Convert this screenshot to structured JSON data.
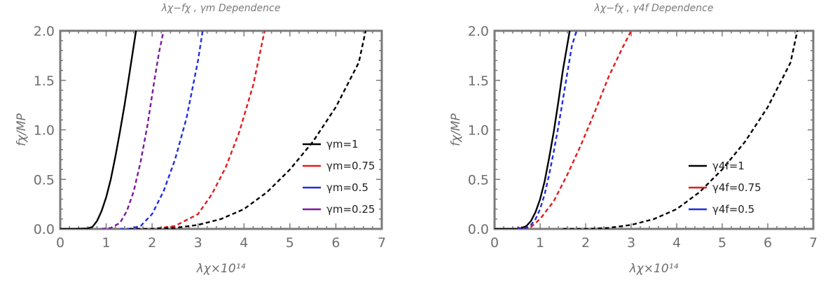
{
  "chart_data": [
    {
      "type": "line",
      "title": "λχ−fχ , γm Dependence",
      "xlabel": "λχ×10¹⁴",
      "ylabel": "fχ/MP",
      "xlim": [
        0,
        7
      ],
      "ylim": [
        0,
        2.0
      ],
      "x_ticks": [
        "0",
        "1",
        "2",
        "3",
        "4",
        "5",
        "6",
        "7"
      ],
      "y_ticks": [
        "0.0",
        "0.5",
        "1.0",
        "1.5",
        "2.0"
      ],
      "legend_position": "right-middle",
      "series": [
        {
          "name": "γm=1",
          "color": "#000000",
          "style": "solid",
          "x": [
            0.0,
            0.3,
            0.6,
            0.7,
            0.8,
            0.9,
            1.0,
            1.1,
            1.2,
            1.3,
            1.4,
            1.5,
            1.6,
            1.65
          ],
          "y": [
            0.0,
            0.0,
            0.005,
            0.02,
            0.08,
            0.18,
            0.32,
            0.5,
            0.73,
            0.98,
            1.25,
            1.55,
            1.85,
            2.0
          ]
        },
        {
          "name": "γm=0.75",
          "color": "#e41a1c",
          "style": "dashed",
          "x": [
            1.5,
            2.0,
            2.5,
            3.0,
            3.3,
            3.6,
            3.9,
            4.2,
            4.45
          ],
          "y": [
            0.0,
            0.0,
            0.03,
            0.15,
            0.35,
            0.62,
            0.98,
            1.45,
            2.0
          ]
        },
        {
          "name": "γm=0.5",
          "color": "#1f2fe0",
          "style": "dashed",
          "x": [
            1.3,
            1.5,
            1.75,
            2.0,
            2.25,
            2.5,
            2.75,
            3.0,
            3.1
          ],
          "y": [
            0.0,
            0.0,
            0.03,
            0.15,
            0.38,
            0.7,
            1.12,
            1.7,
            2.0
          ]
        },
        {
          "name": "γm=0.25",
          "color": "#7a1b9a",
          "style": "dashed",
          "x": [
            0.9,
            1.1,
            1.3,
            1.45,
            1.6,
            1.75,
            1.9,
            2.05,
            2.15,
            2.25
          ],
          "y": [
            0.0,
            0.01,
            0.06,
            0.18,
            0.38,
            0.68,
            1.05,
            1.5,
            1.78,
            2.0
          ]
        },
        {
          "name": "",
          "color": "#000000",
          "style": "dashed",
          "x": [
            1.5,
            2.0,
            2.5,
            3.0,
            3.5,
            4.0,
            4.5,
            5.0,
            5.5,
            6.0,
            6.5,
            6.65
          ],
          "y": [
            0.0,
            0.0,
            0.01,
            0.04,
            0.1,
            0.2,
            0.37,
            0.6,
            0.88,
            1.23,
            1.68,
            2.0
          ]
        }
      ]
    },
    {
      "type": "line",
      "title": "λχ−fχ , γ4f Dependence",
      "xlabel": "λχ×10¹⁴",
      "ylabel": "fχ/MP",
      "xlim": [
        0,
        7
      ],
      "ylim": [
        0,
        2.0
      ],
      "x_ticks": [
        "0",
        "1",
        "2",
        "3",
        "4",
        "5",
        "6",
        "7"
      ],
      "y_ticks": [
        "0.0",
        "0.5",
        "1.0",
        "1.5",
        "2.0"
      ],
      "legend_position": "right-lower",
      "series": [
        {
          "name": "γ4f=1",
          "color": "#000000",
          "style": "solid",
          "x": [
            0.0,
            0.3,
            0.5,
            0.6,
            0.7,
            0.8,
            0.9,
            1.0,
            1.1,
            1.2,
            1.3,
            1.4,
            1.5,
            1.65
          ],
          "y": [
            0.0,
            0.0,
            0.0,
            0.01,
            0.03,
            0.08,
            0.17,
            0.3,
            0.48,
            0.72,
            0.98,
            1.28,
            1.6,
            2.0
          ]
        },
        {
          "name": "γ4f=0.75",
          "color": "#e41a1c",
          "style": "dashed",
          "x": [
            0.5,
            0.6,
            0.8,
            1.0,
            1.3,
            1.6,
            1.9,
            2.2,
            2.5,
            2.8,
            3.0
          ],
          "y": [
            0.02,
            0.0,
            0.02,
            0.1,
            0.28,
            0.55,
            0.85,
            1.18,
            1.53,
            1.82,
            2.0
          ]
        },
        {
          "name": "γ4f=0.5",
          "color": "#1f2fe0",
          "style": "dashed",
          "x": [
            0.5,
            0.7,
            0.8,
            0.9,
            1.0,
            1.1,
            1.2,
            1.3,
            1.4,
            1.5,
            1.6,
            1.7,
            1.8
          ],
          "y": [
            0.0,
            0.01,
            0.04,
            0.1,
            0.2,
            0.35,
            0.55,
            0.78,
            1.03,
            1.3,
            1.58,
            1.85,
            2.0
          ]
        },
        {
          "name": "",
          "color": "#000000",
          "style": "dashed",
          "x": [
            1.5,
            2.0,
            2.5,
            3.0,
            3.5,
            4.0,
            4.5,
            5.0,
            5.5,
            6.0,
            6.5,
            6.65
          ],
          "y": [
            0.0,
            0.0,
            0.01,
            0.04,
            0.1,
            0.2,
            0.37,
            0.6,
            0.88,
            1.23,
            1.68,
            2.0
          ]
        }
      ]
    }
  ]
}
